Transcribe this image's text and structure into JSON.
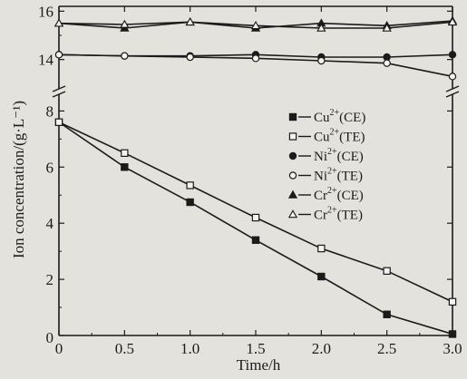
{
  "chart_data": {
    "type": "line",
    "xlabel": "Time/h",
    "ylabel": "Ion concentration/(g·L⁻¹)",
    "x": [
      0,
      0.5,
      1.0,
      1.5,
      2.0,
      2.5,
      3.0
    ],
    "x_ticks": [
      "0",
      "0.5",
      "1.0",
      "1.5",
      "2.0",
      "2.5",
      "3.0"
    ],
    "xlim": [
      0,
      3.0
    ],
    "y_axis_break": true,
    "upper_panel": {
      "ylim": [
        13.2,
        16.2
      ],
      "ticks": [
        14,
        16
      ]
    },
    "lower_panel": {
      "ylim": [
        0,
        8.4
      ],
      "ticks": [
        0,
        2,
        4,
        6,
        8
      ]
    },
    "series": [
      {
        "name": "Cu2+(CE)",
        "ion": "Cu",
        "charge": "2+",
        "method": "(CE)",
        "marker": "filled-square",
        "values": [
          7.6,
          6.0,
          4.75,
          3.4,
          2.1,
          0.75,
          0.05
        ]
      },
      {
        "name": "Cu2+(TE)",
        "ion": "Cu",
        "charge": "2+",
        "method": "(TE)",
        "marker": "open-square",
        "values": [
          7.6,
          6.5,
          5.35,
          4.2,
          3.1,
          2.3,
          1.2
        ]
      },
      {
        "name": "Ni2+(CE)",
        "ion": "Ni",
        "charge": "2+",
        "method": "(CE)",
        "marker": "filled-circle",
        "values": [
          14.2,
          14.15,
          14.15,
          14.2,
          14.1,
          14.1,
          14.2
        ]
      },
      {
        "name": "Ni2+(TE)",
        "ion": "Ni",
        "charge": "2+",
        "method": "(TE)",
        "marker": "open-circle",
        "values": [
          14.2,
          14.15,
          14.1,
          14.05,
          13.95,
          13.85,
          13.3
        ]
      },
      {
        "name": "Cr2+(CE)",
        "ion": "Cr",
        "charge": "2+",
        "method": "(CE)",
        "marker": "filled-triangle",
        "values": [
          15.5,
          15.3,
          15.55,
          15.3,
          15.5,
          15.4,
          15.6
        ]
      },
      {
        "name": "Cr2+(TE)",
        "ion": "Cr",
        "charge": "2+",
        "method": "(TE)",
        "marker": "open-triangle",
        "values": [
          15.5,
          15.45,
          15.55,
          15.4,
          15.3,
          15.3,
          15.55
        ]
      }
    ],
    "legend_position": "middle-right",
    "grid": false
  }
}
